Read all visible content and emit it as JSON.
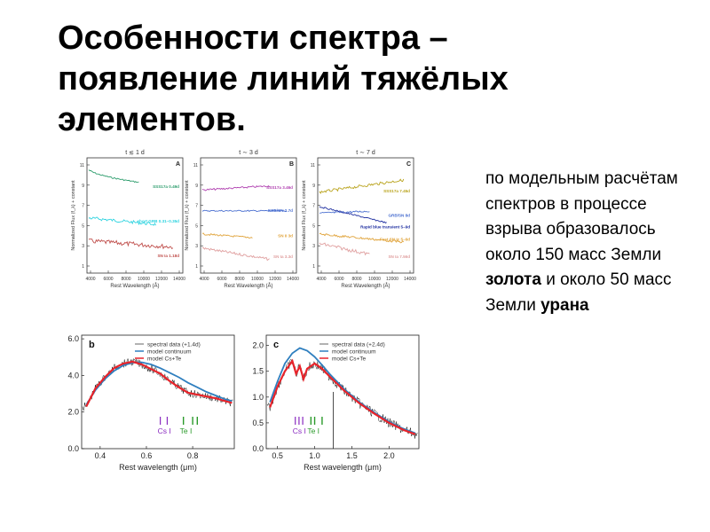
{
  "slide": {
    "title_lines": [
      "Особенности спектра –",
      "появление линий тяжёлых",
      "элементов."
    ],
    "text_parts": {
      "p1": "по модельным расчётам спектров в процессе взрыва образовалось около 150 масс Земли ",
      "gold": "золота",
      "p2": " и около 50 масс Земли ",
      "uranium": "урана"
    }
  },
  "colors": {
    "green": "#2f9e6e",
    "cyan": "#2ed3e0",
    "brown": "#c0504d",
    "olive": "#b9a31c",
    "magenta": "#b040b0",
    "blue_dark": "#1f2fa0",
    "orange": "#e0a33a",
    "pink": "#e0a0a0",
    "steel": "#4a6fd0",
    "model_blue": "#2f7fbf",
    "model_red": "#e8232a",
    "cs_purple": "#8a2bc0",
    "te_green": "#2a9a2a"
  },
  "top_panels": [
    {
      "letter": "A",
      "header": "t ≲ 1 d",
      "ylabel": "Normalized Flux (f_λ) + constant",
      "xlabel": "Rest Wavelength (Å)",
      "xticks": [
        "4000",
        "6000",
        "8000",
        "10000",
        "12000",
        "14000"
      ],
      "yticks": [
        "1",
        "3",
        "5",
        "7",
        "9",
        "11"
      ],
      "labels": [
        "SSS17a  0.49d",
        "short GRB  0.31–0.35d",
        "SN Ia  1.18d"
      ]
    },
    {
      "letter": "B",
      "header": "t ∼ 3 d",
      "ylabel": "Normalized Flux (f_λ) + constant",
      "xlabel": "Rest Wavelength (Å)",
      "xticks": [
        "4000",
        "6000",
        "8000",
        "10000",
        "12000",
        "14000"
      ],
      "yticks": [
        "1",
        "3",
        "5",
        "7",
        "9",
        "11"
      ],
      "labels": [
        "SSS17a  3.46d",
        "GRB/SN  2.7d",
        "SN II  3d",
        "SN Ia  3.3d"
      ]
    },
    {
      "letter": "C",
      "header": "t ∼ 7 d",
      "ylabel": "Normalized Flux (f_λ) + constant",
      "xlabel": "Rest Wavelength (Å)",
      "xticks": [
        "4000",
        "6000",
        "8000",
        "10000",
        "12000",
        "14000"
      ],
      "yticks": [
        "1",
        "3",
        "5",
        "7",
        "9",
        "11"
      ],
      "labels": [
        "SSS17a  7.45d",
        "GRB/SN  8d",
        "Rapid blue transient  5–9d",
        "Fast SN Ic  5–6d",
        "SN Ia  7.56d"
      ]
    }
  ],
  "chart_data": [
    {
      "type": "line",
      "panel": "b",
      "xlabel": "Rest wavelength (μm)",
      "xticks": [
        "0.4",
        "0.6",
        "0.8"
      ],
      "yticks": [
        "0.0",
        "2.0",
        "4.0",
        "6.0"
      ],
      "xlim": [
        0.32,
        0.98
      ],
      "ylim": [
        0,
        6.2
      ],
      "legend": [
        "spectral data (+1.4d)",
        "model continuum",
        "model Cs+Te"
      ],
      "line_labels": [
        "Cs I",
        "Te I"
      ],
      "series": [
        {
          "name": "model continuum",
          "x": [
            0.34,
            0.38,
            0.42,
            0.46,
            0.5,
            0.54,
            0.58,
            0.62,
            0.66,
            0.7,
            0.74,
            0.78,
            0.82,
            0.86,
            0.9,
            0.94,
            0.97
          ],
          "values": [
            2.4,
            3.2,
            3.8,
            4.25,
            4.55,
            4.7,
            4.72,
            4.6,
            4.4,
            4.15,
            3.9,
            3.6,
            3.35,
            3.1,
            2.9,
            2.7,
            2.6
          ]
        },
        {
          "name": "model Cs+Te",
          "x": [
            0.34,
            0.38,
            0.42,
            0.46,
            0.5,
            0.54,
            0.58,
            0.62,
            0.66,
            0.7,
            0.74,
            0.78,
            0.82,
            0.86,
            0.9,
            0.94,
            0.97
          ],
          "values": [
            2.3,
            3.3,
            3.9,
            4.4,
            4.65,
            4.75,
            4.6,
            4.35,
            4.1,
            3.7,
            3.35,
            3.05,
            2.95,
            2.85,
            2.75,
            2.6,
            2.5
          ]
        }
      ]
    },
    {
      "type": "line",
      "panel": "c",
      "xlabel": "Rest wavelength (μm)",
      "xticks": [
        "0.5",
        "1.0",
        "1.5",
        "2.0"
      ],
      "yticks": [
        "0.0",
        "0.5",
        "1.0",
        "1.5",
        "2.0"
      ],
      "xlim": [
        0.35,
        2.4
      ],
      "ylim": [
        0,
        2.2
      ],
      "legend": [
        "spectral data (+2.4d)",
        "model continuum",
        "model Cs+Te"
      ],
      "line_labels": [
        "Cs I",
        "Te I"
      ],
      "series": [
        {
          "name": "model continuum",
          "x": [
            0.4,
            0.5,
            0.6,
            0.7,
            0.8,
            0.9,
            1.0,
            1.1,
            1.2,
            1.4,
            1.6,
            1.8,
            2.0,
            2.2,
            2.35
          ],
          "values": [
            0.9,
            1.3,
            1.65,
            1.85,
            1.95,
            1.9,
            1.78,
            1.62,
            1.45,
            1.15,
            0.9,
            0.7,
            0.52,
            0.38,
            0.3
          ]
        },
        {
          "name": "model Cs+Te",
          "x": [
            0.4,
            0.5,
            0.6,
            0.7,
            0.75,
            0.8,
            0.85,
            0.9,
            1.0,
            1.1,
            1.2,
            1.4,
            1.6,
            1.8,
            2.0,
            2.2,
            2.35
          ],
          "values": [
            0.8,
            1.2,
            1.5,
            1.7,
            1.45,
            1.6,
            1.35,
            1.55,
            1.65,
            1.55,
            1.4,
            1.12,
            0.88,
            0.68,
            0.5,
            0.36,
            0.28
          ]
        }
      ]
    }
  ]
}
